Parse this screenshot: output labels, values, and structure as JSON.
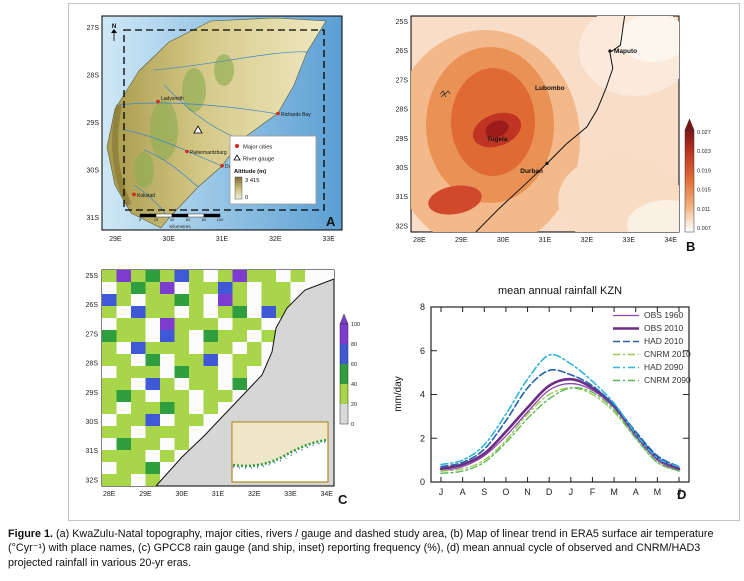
{
  "figure": {
    "caption_label": "Figure 1.",
    "caption_text": " (a) KwaZulu-Natal topography, major cities, rivers / gauge and dashed study area, (b) Map of linear trend in ERA5 surface air temperature (°Cyr⁻¹) with place names, (c) GPCC8 rain gauge (and ship, inset) reporting frequency (%), (d) mean annual cycle of observed and CNRM/HAD3 projected rainfall in various 20-yr eras."
  },
  "panelA": {
    "label": "A",
    "north_label": "N",
    "xticks": [
      "29E",
      "30E",
      "31E",
      "32E",
      "33E"
    ],
    "yticks": [
      "27S",
      "28S",
      "29S",
      "30S",
      "31S"
    ],
    "cities": [
      "Ladysmith",
      "Richards Bay",
      "Pietermaritzburg",
      "Durban",
      "Kokstad"
    ],
    "legend": {
      "major_cities": "Major cities",
      "river_gauge": "River gauge",
      "altitude": "Altitude (m)",
      "alt_max": "3 415",
      "alt_min": "0"
    },
    "scalebar": {
      "ticks": [
        "0",
        "20",
        "40",
        "60",
        "80",
        "100"
      ],
      "unit": "Kilometres"
    }
  },
  "panelB": {
    "label": "B",
    "xticks": [
      "28E",
      "29E",
      "30E",
      "31E",
      "32E",
      "33E",
      "34E"
    ],
    "yticks": [
      "25S",
      "26S",
      "27S",
      "28S",
      "29S",
      "30S",
      "31S",
      "32S"
    ],
    "places": {
      "maputo": "Maputo",
      "lubombo": "Lubombo",
      "tugela": "Tugela",
      "durban": "Durban"
    },
    "colorbar": [
      "0.027",
      "0.023",
      "0.019",
      "0.015",
      "0.011",
      "0.007"
    ]
  },
  "panelC": {
    "label": "C",
    "xticks": [
      "28E",
      "29E",
      "30E",
      "31E",
      "32E",
      "33E",
      "34E"
    ],
    "yticks": [
      "25S",
      "26S",
      "27S",
      "28S",
      "29S",
      "30S",
      "31S",
      "32S"
    ],
    "colorbar": [
      "100",
      "80",
      "60",
      "40",
      "20",
      "0"
    ],
    "cell_colors": {
      "g": "#a8d54a",
      "G": "#2e9e3f",
      "b": "#3f58d6",
      "p": "#7d3bd0"
    },
    "grid": [
      "gpgGgbg.gpgg.gss",
      ".gGgp.ggbg.gg.ss",
      "bg.ggGg.pg.ggsss",
      "g.bgg.g.gG.bgsss",
      ".gg.pggg.gg.ssss",
      "Ggg.bg.Ggg.gssss",
      "g.bggg.gg.gsssss",
      "gg.G.ggb.ggsssss",
      ".ggg.Ggg.gssssss",
      "gg.bg.gg.Gssssss",
      "gGg.gg.ggsssssss",
      "g.ggGg.gssssssss",
      ".ggb.gg.ssssssss",
      "gg.ggg.sssssssss",
      ".Ggg.gssssssssss",
      "ggg.gsssssssssss",
      ".ggGssssssssssss",
      "gg.gssssssssssss"
    ]
  },
  "panelD": {
    "label": "D"
  },
  "chart_data": {
    "type": "line",
    "title": "mean annual rainfall KZN",
    "ylabel": "mm/day",
    "ylim": [
      0,
      8
    ],
    "yticks": [
      0,
      2,
      4,
      6,
      8
    ],
    "categories": [
      "J",
      "A",
      "S",
      "O",
      "N",
      "D",
      "J",
      "F",
      "M",
      "A",
      "M",
      "J"
    ],
    "legend_position": "right",
    "series": [
      {
        "name": "OBS 1960",
        "color": "#8e44ad",
        "width": 1.3,
        "dash": "",
        "values": [
          0.5,
          0.7,
          1.2,
          2.1,
          3.2,
          4.2,
          4.5,
          4.2,
          3.4,
          2.1,
          1.0,
          0.5
        ]
      },
      {
        "name": "OBS 2010",
        "color": "#6c2d84",
        "width": 2.6,
        "dash": "",
        "values": [
          0.6,
          0.8,
          1.3,
          2.3,
          3.4,
          4.4,
          4.7,
          4.3,
          3.5,
          2.2,
          1.1,
          0.6
        ]
      },
      {
        "name": "HAD 2010",
        "color": "#2563ae",
        "width": 1.6,
        "dash": "7,3",
        "values": [
          0.7,
          0.9,
          1.5,
          2.8,
          4.3,
          5.1,
          4.9,
          4.4,
          3.5,
          2.3,
          1.2,
          0.7
        ]
      },
      {
        "name": "CNRM 2010",
        "color": "#9acd4f",
        "width": 1.4,
        "dash": "7,3,2,3",
        "values": [
          0.5,
          0.6,
          1.0,
          1.9,
          3.1,
          4.0,
          4.3,
          4.0,
          3.2,
          2.0,
          0.9,
          0.5
        ]
      },
      {
        "name": "HAD 2090",
        "color": "#2fb4dc",
        "width": 1.6,
        "dash": "7,3,2,3",
        "values": [
          0.8,
          1.0,
          1.7,
          3.1,
          4.7,
          5.8,
          5.4,
          4.6,
          3.6,
          2.2,
          1.1,
          0.7
        ]
      },
      {
        "name": "CNRM 2090",
        "color": "#5cb85c",
        "width": 1.4,
        "dash": "7,3,2,3",
        "values": [
          0.4,
          0.5,
          0.9,
          1.8,
          2.9,
          3.8,
          4.3,
          4.1,
          3.3,
          2.0,
          0.9,
          0.5
        ]
      }
    ]
  }
}
